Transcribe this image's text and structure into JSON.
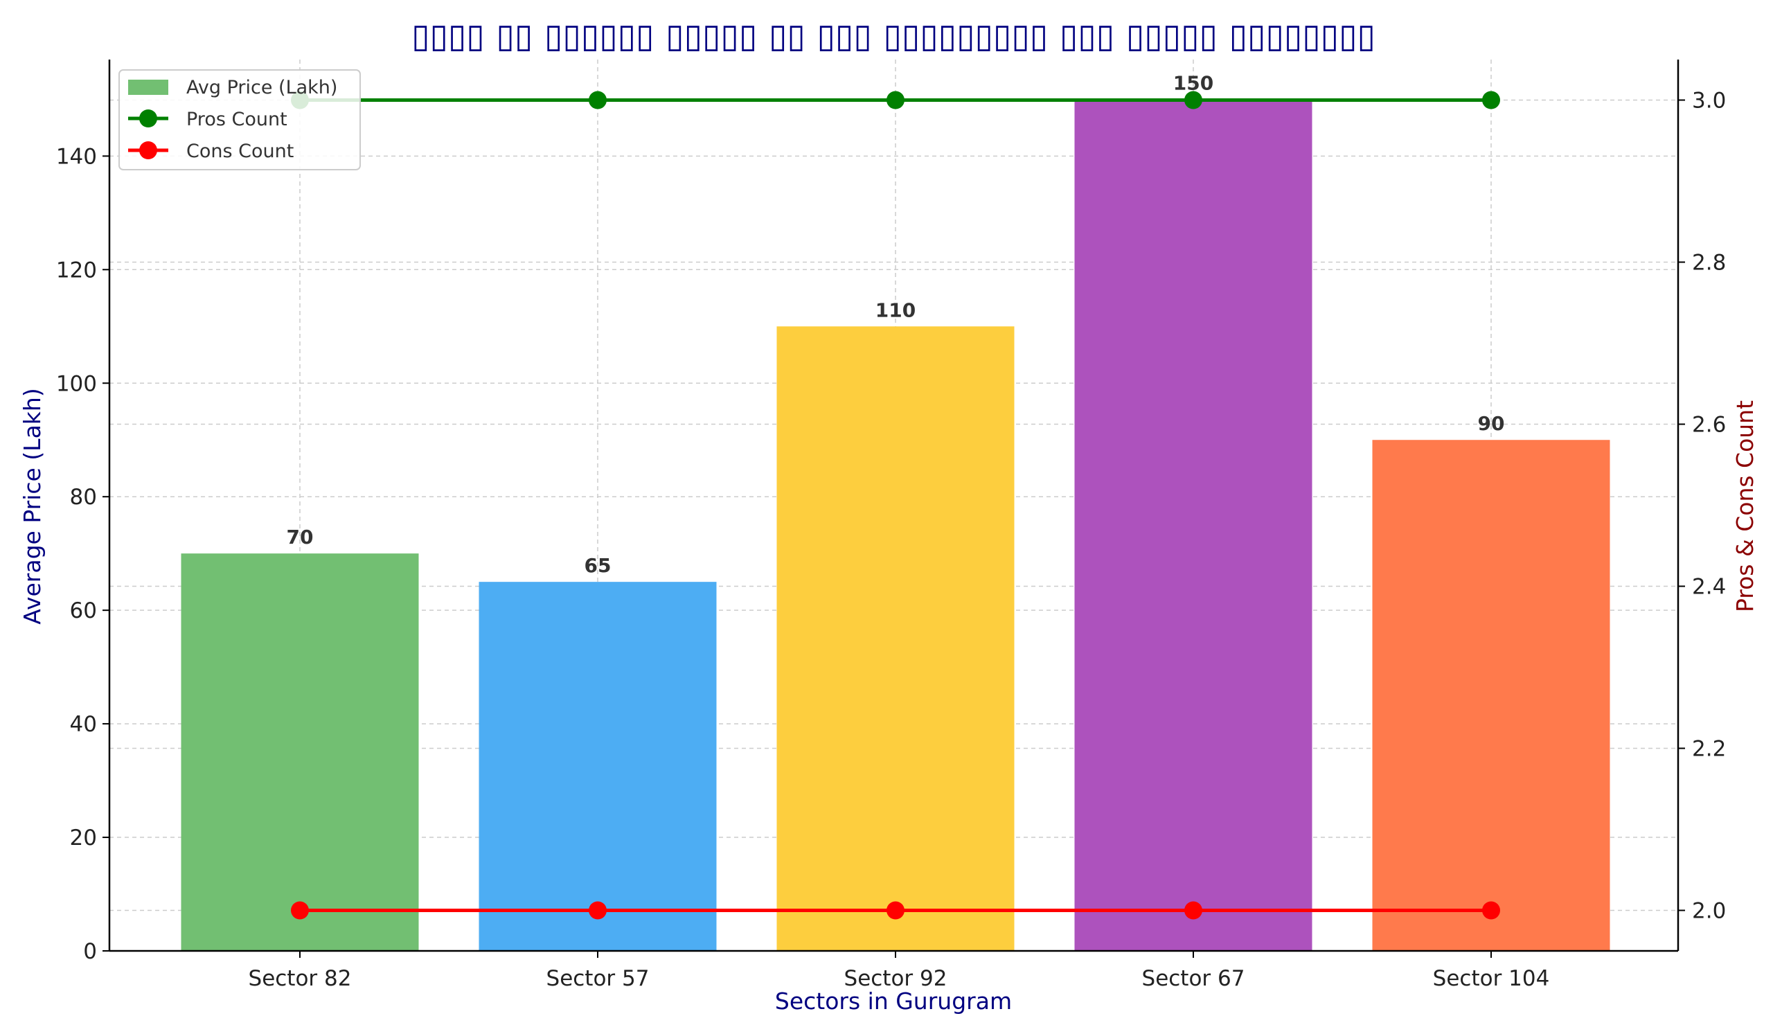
{
  "chart_data": {
    "type": "bar",
    "title": "▯▯▯▯ ▯▯ ▯▯▯▯▯▯ ▯▯▯▯▯ ▯▯ ▯▯▯ ▯▯▯▯▯▯▯▯▯ ▯▯▯ ▯▯▯▯▯ ▯▯▯▯▯▯▯▯",
    "xlabel": "Sectors in Gurugram",
    "ylabel": "Average Price (Lakh)",
    "y2label": "Pros & Cons Count",
    "categories": [
      "Sector 82",
      "Sector 57",
      "Sector 92",
      "Sector 67",
      "Sector 104"
    ],
    "series": [
      {
        "name": "Avg Price (Lakh)",
        "type": "bar",
        "axis": "left",
        "values": [
          70,
          65,
          110,
          150,
          90
        ],
        "colors": [
          "#72bf72",
          "#4dadf3",
          "#fdce3e",
          "#ad52bd",
          "#ff7a4c"
        ]
      },
      {
        "name": "Pros Count",
        "type": "line",
        "axis": "right",
        "values": [
          3,
          3,
          3,
          3,
          3
        ],
        "color": "#008000"
      },
      {
        "name": "Cons Count",
        "type": "line",
        "axis": "right",
        "values": [
          2,
          2,
          2,
          2,
          2
        ],
        "color": "#ff0000"
      }
    ],
    "ylim": [
      0,
      157
    ],
    "y2lim": [
      1.95,
      3.05
    ],
    "yticks": [
      0,
      20,
      40,
      60,
      80,
      100,
      120,
      140
    ],
    "y2ticks": [
      2.0,
      2.2,
      2.4,
      2.6,
      2.8,
      3.0
    ],
    "y2tick_labels": [
      "2.0",
      "2.2",
      "2.4",
      "2.6",
      "2.8",
      "3.0"
    ],
    "grid": true,
    "legend": "top-left",
    "colors": {
      "title": "#000080",
      "ylabel": "#000080",
      "y2label": "#8b0000",
      "xlabel": "#000080",
      "grid": "#cccccc",
      "axis": "#000000"
    }
  }
}
